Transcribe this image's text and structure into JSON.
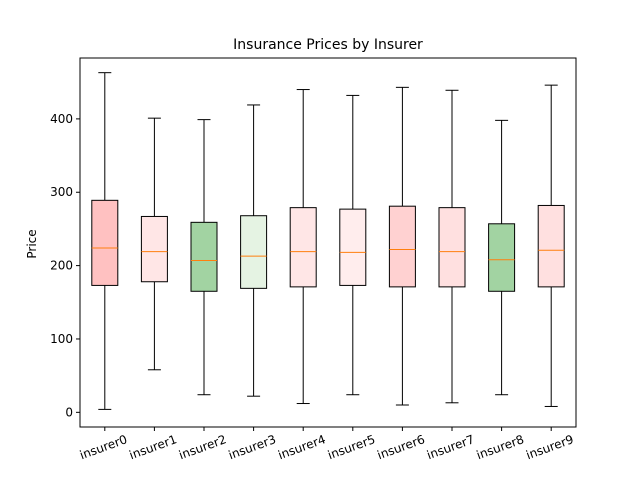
{
  "chart_data": {
    "type": "box",
    "title": "Insurance Prices by Insurer",
    "xlabel": "",
    "ylabel": "Price",
    "ylim": [
      -20,
      483
    ],
    "yticks": [
      0,
      100,
      200,
      300,
      400
    ],
    "grid": false,
    "legend": "none",
    "median_color": "#ff7f0e",
    "categories": [
      "insurer0",
      "insurer1",
      "insurer2",
      "insurer3",
      "insurer4",
      "insurer5",
      "insurer6",
      "insurer7",
      "insurer8",
      "insurer9"
    ],
    "boxes": [
      {
        "whisker_low": 4,
        "q1": 173,
        "median": 224,
        "q3": 289,
        "whisker_high": 463,
        "color": "#ffc1c1"
      },
      {
        "whisker_low": 58,
        "q1": 178,
        "median": 219,
        "q3": 267,
        "whisker_high": 401,
        "color": "#ffe6e6"
      },
      {
        "whisker_low": 24,
        "q1": 165,
        "median": 207,
        "q3": 259,
        "whisker_high": 399,
        "color": "#a2d3a2"
      },
      {
        "whisker_low": 22,
        "q1": 169,
        "median": 213,
        "q3": 268,
        "whisker_high": 419,
        "color": "#e5f3e3"
      },
      {
        "whisker_low": 12,
        "q1": 171,
        "median": 219,
        "q3": 279,
        "whisker_high": 440,
        "color": "#ffe6e6"
      },
      {
        "whisker_low": 24,
        "q1": 173,
        "median": 218,
        "q3": 277,
        "whisker_high": 432,
        "color": "#ffeded"
      },
      {
        "whisker_low": 10,
        "q1": 171,
        "median": 222,
        "q3": 281,
        "whisker_high": 443,
        "color": "#ffd1d1"
      },
      {
        "whisker_low": 13,
        "q1": 171,
        "median": 219,
        "q3": 279,
        "whisker_high": 439,
        "color": "#ffe0e0"
      },
      {
        "whisker_low": 24,
        "q1": 165,
        "median": 208,
        "q3": 257,
        "whisker_high": 398,
        "color": "#a2d3a2"
      },
      {
        "whisker_low": 8,
        "q1": 171,
        "median": 221,
        "q3": 282,
        "whisker_high": 446,
        "color": "#ffe0e0"
      }
    ]
  }
}
